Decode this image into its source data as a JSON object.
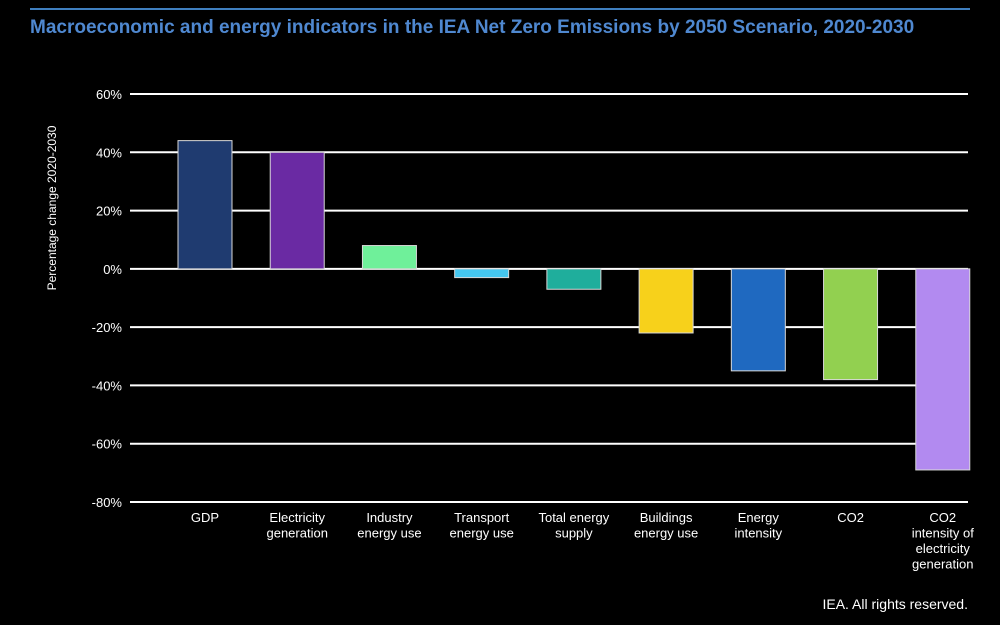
{
  "chart_data": {
    "type": "bar",
    "title": "Macroeconomic and energy indicators in the IEA Net Zero Emissions by 2050 Scenario, 2020-2030",
    "xlabel": "",
    "ylabel": "Percentage change 2020-2030",
    "ylim": [
      -80,
      60
    ],
    "yticks": [
      60,
      40,
      20,
      0,
      -20,
      -40,
      -60,
      -80
    ],
    "ytick_labels": [
      "60%",
      "40%",
      "20%",
      "0%",
      "-20%",
      "-40%",
      "-60%",
      "-80%"
    ],
    "grid": true,
    "legend": "none",
    "categories": [
      [
        "GDP"
      ],
      [
        "Electricity",
        "generation"
      ],
      [
        "Industry",
        "energy use"
      ],
      [
        "Transport",
        "energy use"
      ],
      [
        "Total energy",
        "supply"
      ],
      [
        "Buildings",
        "energy use"
      ],
      [
        "Energy",
        "intensity"
      ],
      [
        "CO2"
      ],
      [
        "CO2",
        "intensity of",
        "electricity",
        "generation"
      ]
    ],
    "values": [
      44,
      40,
      8,
      -3,
      -7,
      -22,
      -35,
      -38,
      -69
    ],
    "colors": [
      "#1f3b70",
      "#6a2aa3",
      "#6ff09a",
      "#45c7f0",
      "#1fae9c",
      "#f7d11b",
      "#1f69c0",
      "#92d050",
      "#b28af0"
    ]
  },
  "footer": {
    "copyright": "IEA. All rights reserved."
  }
}
